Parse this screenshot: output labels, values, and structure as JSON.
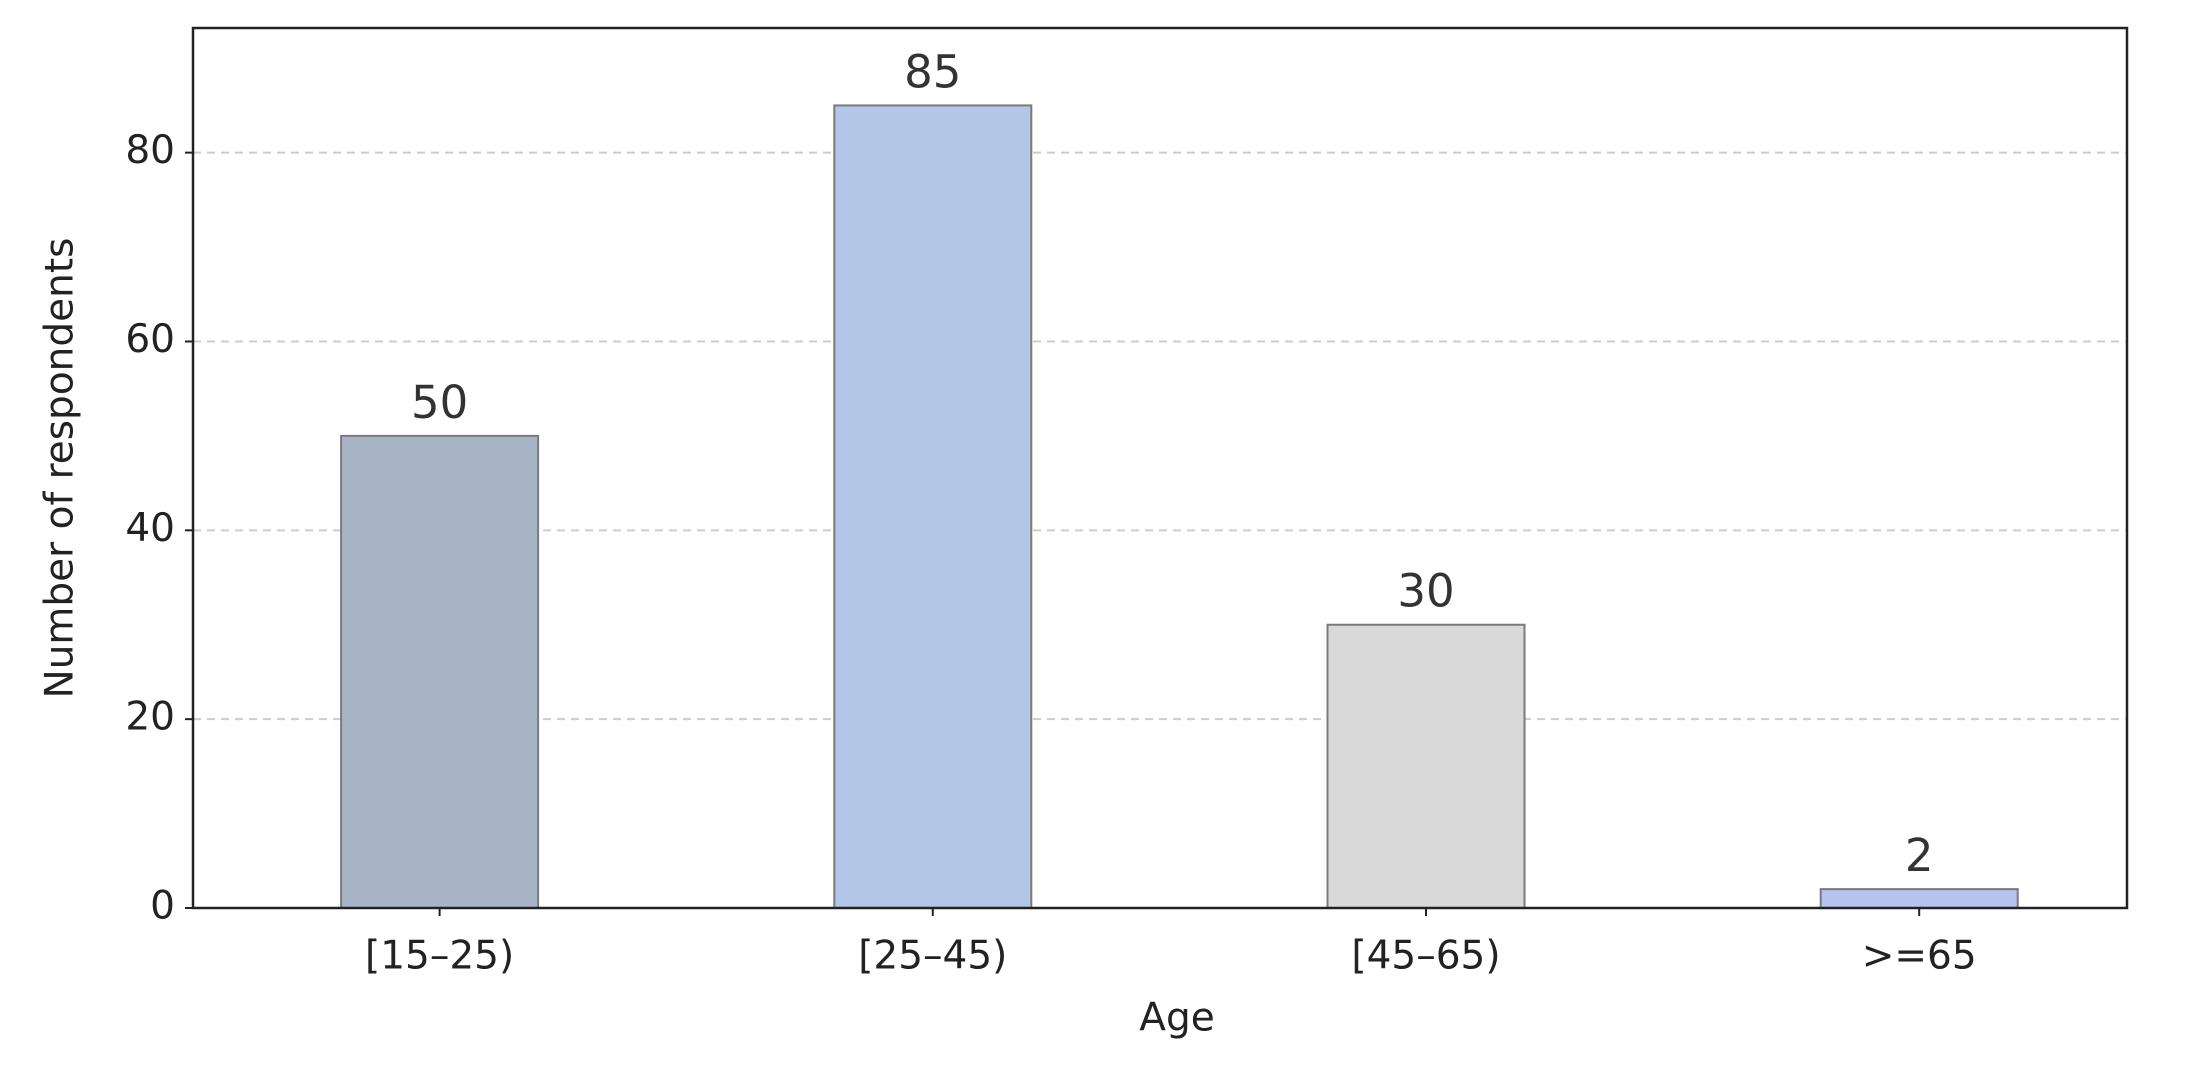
{
  "chart_data": {
    "type": "bar",
    "xlabel": "Age",
    "ylabel": "Number of respondents",
    "categories": [
      "[15–25)",
      "[25–45)",
      "[45–65)",
      ">=65"
    ],
    "values": [
      50,
      85,
      30,
      2
    ],
    "colors": [
      "#a9b4c6",
      "#b3c6e7",
      "#d9d9d9",
      "#b8c4f0"
    ],
    "edge_color": "#7a7a7a",
    "ylim": [
      0,
      93.2
    ],
    "yticks": [
      0,
      20,
      40,
      60,
      80
    ],
    "grid": true,
    "value_labels_shown": true
  }
}
